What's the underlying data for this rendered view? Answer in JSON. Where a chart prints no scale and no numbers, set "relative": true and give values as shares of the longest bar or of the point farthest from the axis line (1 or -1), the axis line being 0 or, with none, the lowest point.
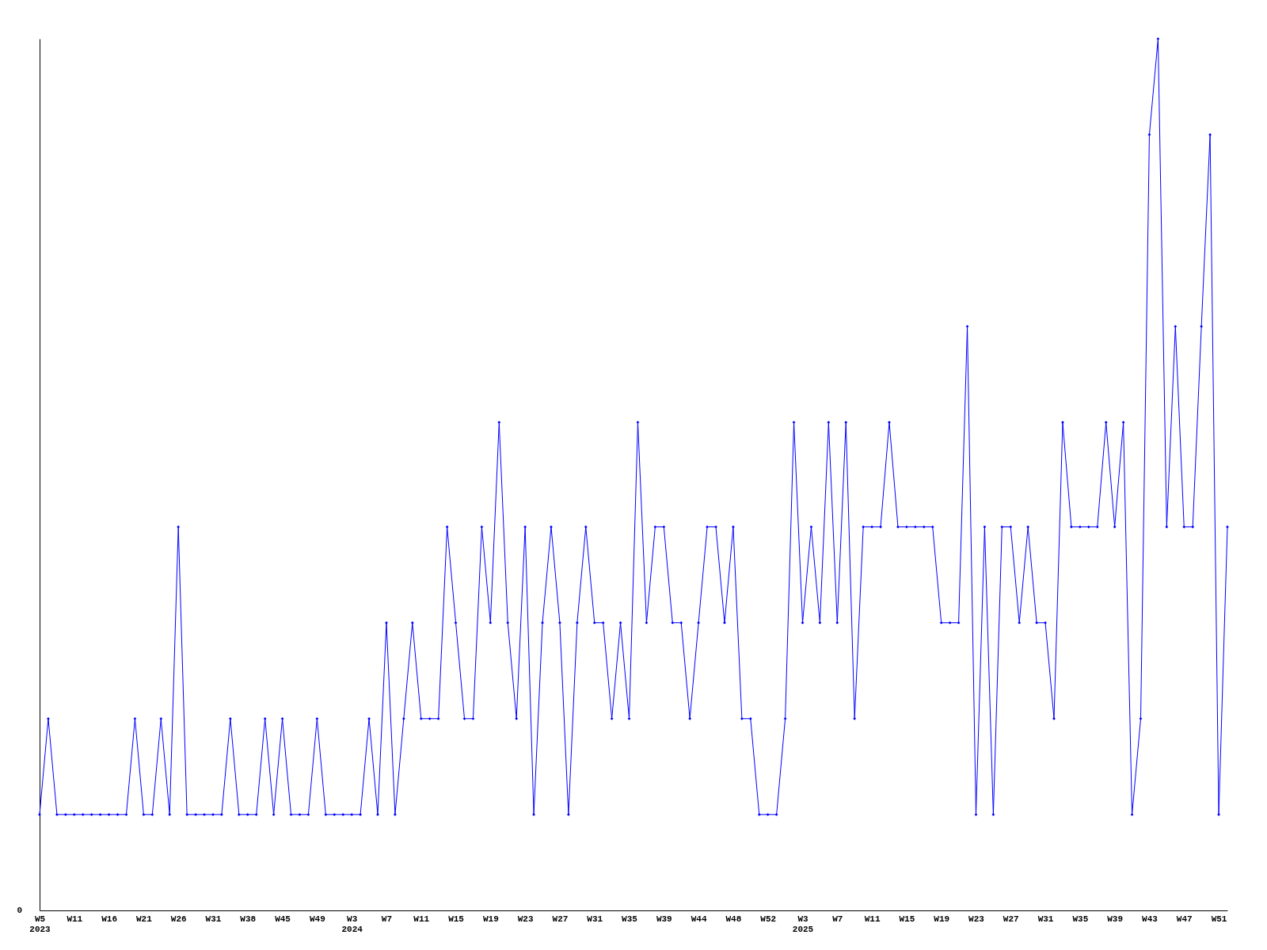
{
  "chart_data": {
    "type": "line",
    "relative": true,
    "color": "#0000ff",
    "marker": "diamond",
    "grid": false,
    "annotations": [
      "0"
    ],
    "categories": [
      "W5\n2023",
      null,
      null,
      null,
      "W11",
      null,
      null,
      null,
      "W16",
      null,
      null,
      null,
      "W21",
      null,
      null,
      null,
      "W26",
      null,
      null,
      null,
      "W31",
      null,
      null,
      null,
      "W38",
      null,
      null,
      null,
      "W45",
      null,
      null,
      null,
      "W49",
      null,
      null,
      null,
      "W3\n2024",
      null,
      null,
      null,
      "W7",
      null,
      null,
      null,
      "W11",
      null,
      null,
      null,
      "W15",
      null,
      null,
      null,
      "W19",
      null,
      null,
      null,
      "W23",
      null,
      null,
      null,
      "W27",
      null,
      null,
      null,
      "W31",
      null,
      null,
      null,
      "W35",
      null,
      null,
      null,
      "W39",
      null,
      null,
      null,
      "W44",
      null,
      null,
      null,
      "W48",
      null,
      null,
      null,
      "W52",
      null,
      null,
      null,
      "W3\n2025",
      null,
      null,
      null,
      "W7",
      null,
      null,
      null,
      "W11",
      null,
      null,
      null,
      "W15",
      null,
      null,
      null,
      "W19",
      null,
      null,
      null,
      "W23",
      null,
      null,
      null,
      "W27",
      null,
      null,
      null,
      "W31",
      null,
      null,
      null,
      "W35",
      null,
      null,
      null,
      "W39",
      null,
      null,
      null,
      "W43",
      null,
      null,
      null,
      "W47",
      null,
      null,
      null,
      "W51",
      null
    ],
    "values": [
      0.11,
      0.22,
      0.11,
      0.11,
      0.11,
      0.11,
      0.11,
      0.11,
      0.11,
      0.11,
      0.11,
      0.22,
      0.11,
      0.11,
      0.22,
      0.11,
      0.44,
      0.11,
      0.11,
      0.11,
      0.11,
      0.11,
      0.22,
      0.11,
      0.11,
      0.11,
      0.22,
      0.11,
      0.22,
      0.11,
      0.11,
      0.11,
      0.22,
      0.11,
      0.11,
      0.11,
      0.11,
      0.11,
      0.22,
      0.11,
      0.33,
      0.11,
      0.22,
      0.33,
      0.22,
      0.22,
      0.22,
      0.44,
      0.33,
      0.22,
      0.22,
      0.44,
      0.33,
      0.56,
      0.33,
      0.22,
      0.44,
      0.11,
      0.33,
      0.44,
      0.33,
      0.11,
      0.33,
      0.44,
      0.33,
      0.33,
      0.22,
      0.33,
      0.22,
      0.56,
      0.33,
      0.44,
      0.44,
      0.33,
      0.33,
      0.22,
      0.33,
      0.44,
      0.44,
      0.33,
      0.44,
      0.22,
      0.22,
      0.11,
      0.11,
      0.11,
      0.22,
      0.56,
      0.33,
      0.44,
      0.33,
      0.56,
      0.33,
      0.56,
      0.22,
      0.44,
      0.44,
      0.44,
      0.56,
      0.44,
      0.44,
      0.44,
      0.44,
      0.44,
      0.33,
      0.33,
      0.33,
      0.67,
      0.11,
      0.44,
      0.11,
      0.44,
      0.44,
      0.33,
      0.44,
      0.33,
      0.33,
      0.22,
      0.56,
      0.44,
      0.44,
      0.44,
      0.44,
      0.56,
      0.44,
      0.56,
      0.11,
      0.22,
      0.89,
      1,
      0.44,
      0.67,
      0.44,
      0.44,
      0.67,
      0.89,
      0.11,
      0.44
    ]
  }
}
